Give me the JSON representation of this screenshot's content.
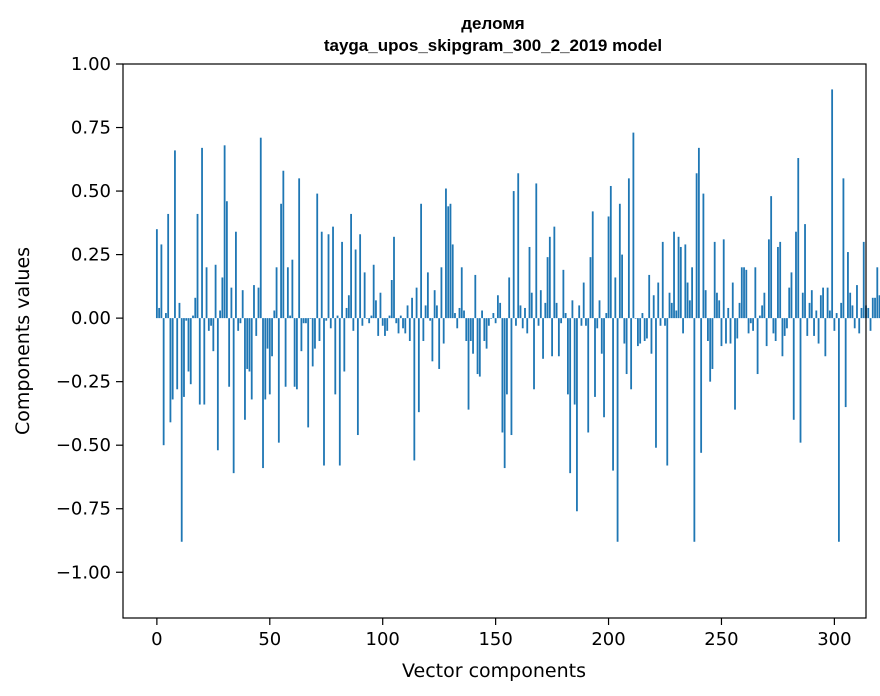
{
  "chart_data": {
    "type": "bar",
    "title": "деломя",
    "subtitle": "tayga_upos_skipgram_300_2_2019 model",
    "xlabel": "Vector components",
    "ylabel": "Components values",
    "xlim": [
      -15,
      314
    ],
    "ylim": [
      -1.18,
      1.0
    ],
    "xticks": [
      0,
      50,
      100,
      150,
      200,
      250,
      300
    ],
    "xtick_labels": [
      "0",
      "50",
      "100",
      "150",
      "200",
      "250",
      "300"
    ],
    "yticks": [
      1.0,
      0.75,
      0.5,
      0.25,
      0.0,
      -0.25,
      -0.5,
      -0.75,
      -1.0
    ],
    "ytick_labels": [
      "1.00",
      "0.75",
      "0.50",
      "0.25",
      "0.00",
      "−0.25",
      "−0.50",
      "−0.75",
      "−1.00"
    ],
    "grid": false,
    "legend": "none",
    "color": "#1f77b4",
    "values": [
      0.35,
      0.04,
      0.29,
      -0.5,
      0.02,
      0.41,
      -0.41,
      -0.32,
      0.66,
      -0.28,
      0.06,
      -0.88,
      -0.31,
      -0.01,
      -0.21,
      -0.26,
      0.01,
      0.08,
      0.41,
      -0.34,
      0.67,
      -0.34,
      0.2,
      -0.05,
      -0.03,
      -0.13,
      0.21,
      -0.52,
      0.03,
      0.16,
      0.68,
      0.46,
      -0.27,
      0.12,
      -0.61,
      0.34,
      -0.05,
      -0.02,
      0.11,
      -0.4,
      -0.2,
      -0.21,
      -0.32,
      0.13,
      -0.07,
      0.12,
      0.71,
      -0.59,
      -0.32,
      -0.12,
      -0.3,
      -0.15,
      0.03,
      0.2,
      -0.49,
      0.45,
      0.58,
      -0.27,
      0.2,
      0.01,
      0.23,
      -0.27,
      -0.28,
      0.55,
      -0.13,
      -0.02,
      -0.02,
      -0.43,
      0.0,
      -0.19,
      -0.12,
      0.49,
      -0.09,
      0.34,
      -0.58,
      -0.01,
      0.33,
      -0.04,
      0.36,
      -0.3,
      0.01,
      -0.58,
      0.3,
      -0.21,
      0.04,
      0.09,
      0.41,
      -0.05,
      0.27,
      -0.46,
      0.33,
      -0.03,
      0.18,
      0.0,
      -0.02,
      0.01,
      0.21,
      0.07,
      -0.07,
      0.1,
      -0.03,
      -0.07,
      -0.05,
      0.01,
      0.15,
      0.32,
      -0.02,
      -0.06,
      0.01,
      -0.04,
      -0.06,
      0.05,
      -0.09,
      0.08,
      -0.56,
      0.12,
      -0.37,
      0.45,
      -0.09,
      0.05,
      0.18,
      -0.01,
      -0.17,
      0.11,
      0.05,
      -0.2,
      0.2,
      -0.1,
      0.51,
      0.44,
      0.45,
      0.29,
      0.02,
      -0.04,
      0.04,
      0.2,
      0.03,
      -0.09,
      -0.36,
      -0.09,
      -0.14,
      0.17,
      -0.22,
      -0.23,
      0.03,
      -0.09,
      -0.12,
      -0.03,
      0.0,
      0.02,
      -0.02,
      0.09,
      0.06,
      -0.45,
      -0.59,
      -0.3,
      0.16,
      -0.46,
      0.5,
      -0.03,
      0.57,
      0.05,
      -0.04,
      0.04,
      -0.06,
      0.28,
      0.1,
      -0.28,
      0.53,
      -0.03,
      0.11,
      -0.16,
      0.06,
      0.24,
      0.32,
      -0.15,
      0.36,
      0.06,
      -0.15,
      -0.02,
      0.19,
      0.02,
      -0.3,
      -0.61,
      0.07,
      -0.34,
      -0.76,
      0.05,
      -0.03,
      0.14,
      -0.03,
      -0.45,
      0.24,
      0.42,
      -0.31,
      -0.04,
      0.07,
      -0.14,
      -0.39,
      0.02,
      0.4,
      0.52,
      -0.6,
      0.16,
      -0.88,
      0.45,
      0.25,
      -0.1,
      -0.22,
      0.55,
      -0.28,
      0.73,
      0.0,
      -0.11,
      -0.1,
      0.02,
      -0.09,
      -0.08,
      0.17,
      -0.14,
      0.09,
      -0.51,
      0.14,
      -0.03,
      0.3,
      -0.03,
      -0.58,
      0.1,
      0.06,
      0.34,
      0.03,
      0.32,
      0.28,
      -0.06,
      0.29,
      0.14,
      0.07,
      0.2,
      -0.88,
      0.57,
      0.67,
      -0.53,
      0.49,
      0.11,
      -0.09,
      -0.25,
      -0.2,
      0.3,
      0.1,
      0.07,
      -0.11,
      0.31,
      -0.1,
      0.04,
      -0.1,
      0.14,
      -0.36,
      -0.08,
      0.06,
      0.2,
      0.2,
      0.19,
      -0.06,
      -0.02,
      -0.05,
      0.2,
      -0.22,
      0.01,
      0.05,
      0.1,
      -0.11,
      0.31,
      0.48,
      -0.06,
      -0.09,
      0.28,
      0.3,
      -0.15,
      -0.07,
      -0.04,
      0.12,
      0.18,
      -0.4,
      0.34,
      0.63,
      -0.49,
      0.1,
      0.37,
      -0.07,
      0.06,
      0.11,
      -0.07,
      0.03,
      -0.1,
      0.09,
      0.12,
      -0.15,
      0.12,
      0.03,
      0.9,
      -0.05,
      0.02,
      -0.88,
      0.06,
      0.55,
      -0.35,
      0.26,
      0.1,
      0.05,
      -0.04,
      0.13,
      -0.06,
      0.04,
      0.3,
      0.05,
      0.04,
      -0.05,
      0.08,
      0.08,
      0.2,
      0.09
    ]
  }
}
